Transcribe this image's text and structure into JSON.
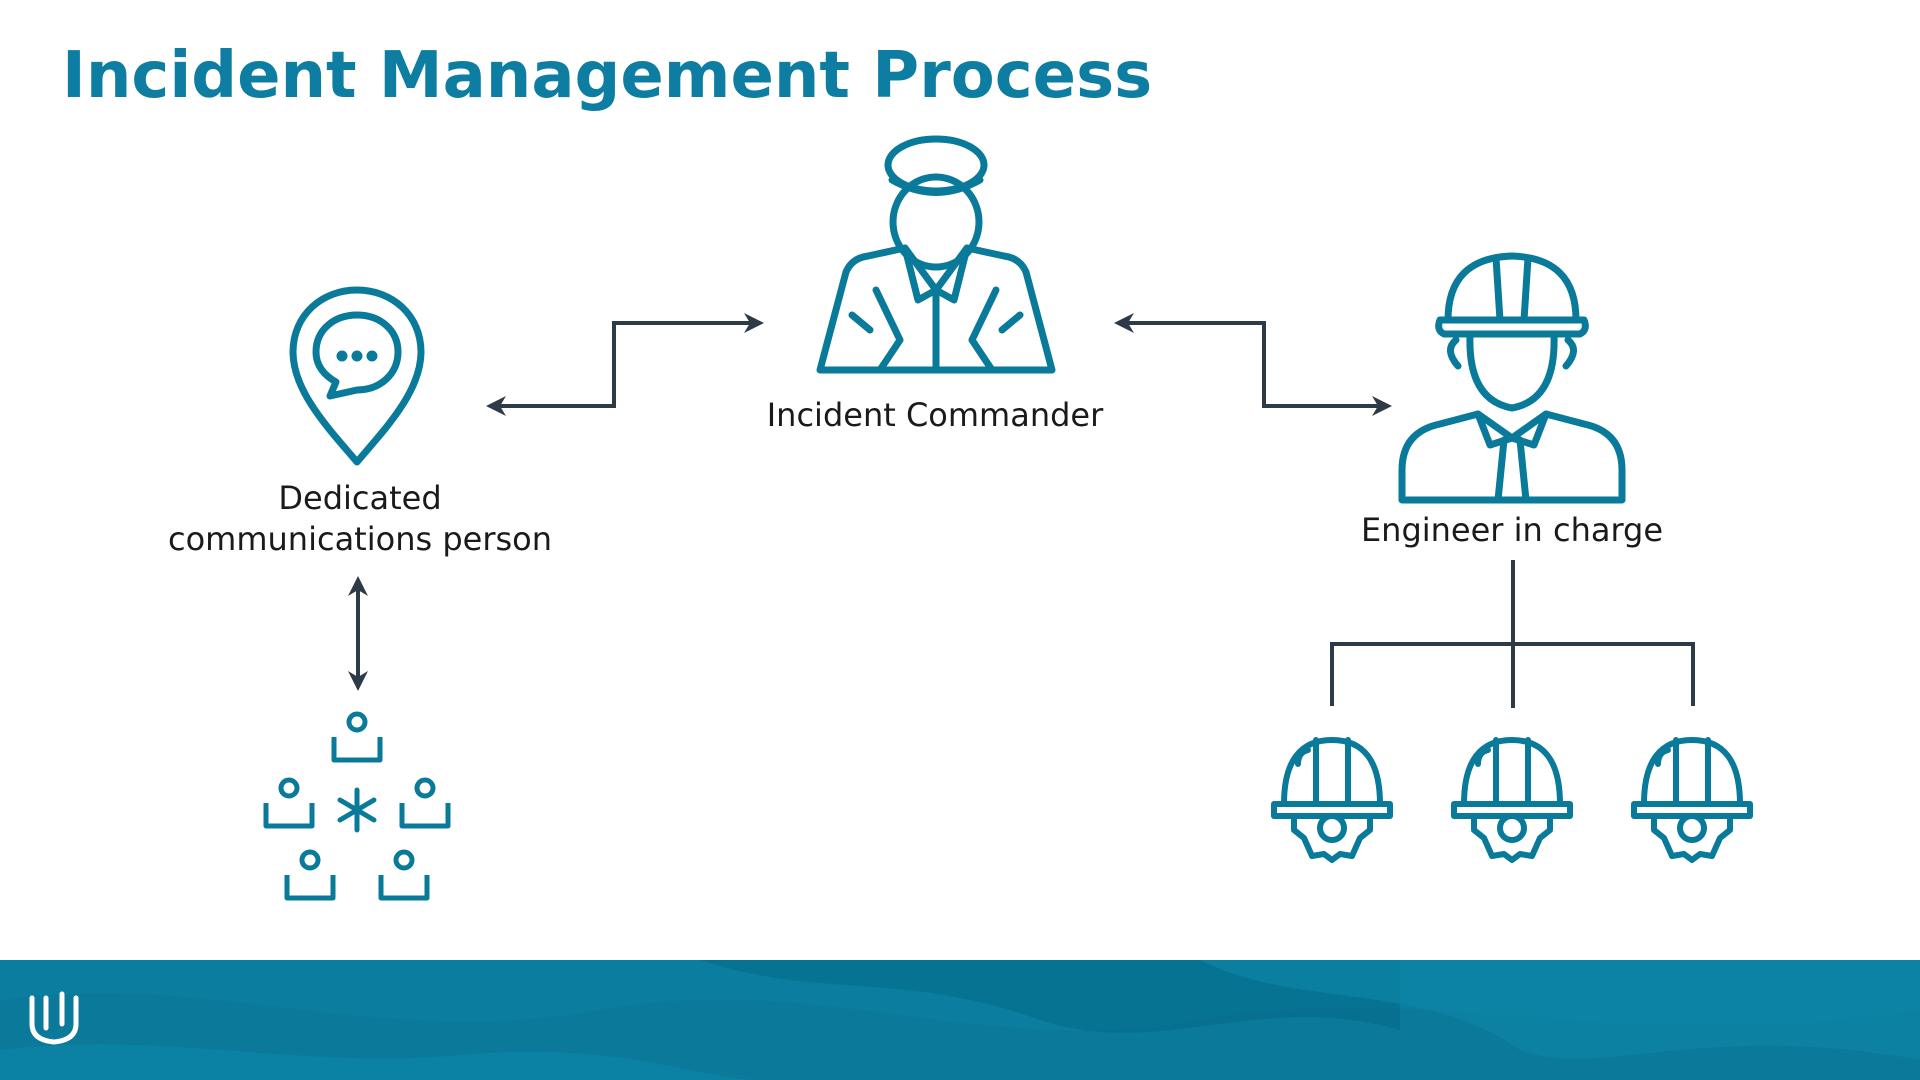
{
  "slide": {
    "title": "Incident Management Process"
  },
  "nodes": {
    "commander": {
      "label": "Incident Commander",
      "icon": "commander-icon"
    },
    "comms": {
      "label": "Dedicated\ncommunications person",
      "label_line1": "Dedicated",
      "label_line2": "communications person",
      "icon": "location-chat-icon"
    },
    "engineer": {
      "label": "Engineer in charge",
      "icon": "engineer-icon"
    },
    "team": {
      "icon": "team-network-icon"
    },
    "engineers": {
      "icons": [
        "hardhat-gear-icon",
        "hardhat-gear-icon",
        "hardhat-gear-icon"
      ]
    }
  },
  "colors": {
    "title": "#0d7ea1",
    "icon": "#0a7a9a",
    "arrow": "#2d3a47",
    "footer": "#0b7ea0",
    "footer_dark": "#066a88"
  },
  "footer": {
    "logo": "udacity-logo"
  }
}
